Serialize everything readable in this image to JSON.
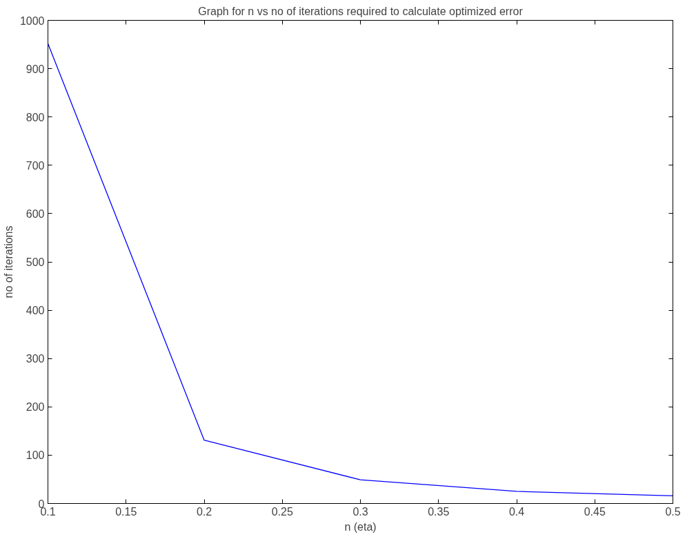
{
  "chart_data": {
    "type": "line",
    "title": "Graph for n vs no of iterations required to calculate optimized error",
    "xlabel": "n (eta)",
    "ylabel": "no of iterations",
    "x": [
      0.1,
      0.2,
      0.3,
      0.4,
      0.5
    ],
    "series": [
      {
        "color": "#0000ff",
        "values": [
          952,
          131,
          49,
          25,
          16
        ]
      }
    ],
    "xlim": [
      0.1,
      0.5
    ],
    "xticks": [
      0.1,
      0.15,
      0.2,
      0.25,
      0.3,
      0.35,
      0.4,
      0.45,
      0.5
    ],
    "ylim": [
      0,
      1000
    ],
    "yticks": [
      0,
      100,
      200,
      300,
      400,
      500,
      600,
      700,
      800,
      900,
      1000
    ],
    "grid": false,
    "marker": "none",
    "line_style": "solid"
  }
}
